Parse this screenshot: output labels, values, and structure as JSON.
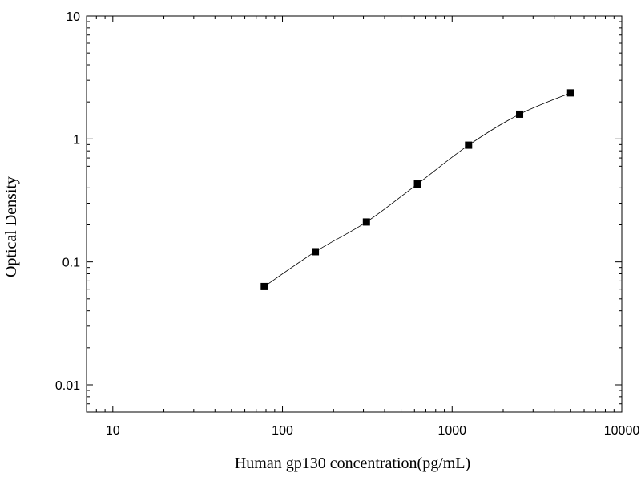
{
  "chart_data": {
    "type": "scatter",
    "title": "",
    "xlabel": "Human gp130 concentration(pg/mL)",
    "ylabel": "Optical Density",
    "x_scale": "log",
    "y_scale": "log",
    "xlim": [
      7,
      10000
    ],
    "ylim": [
      0.006,
      10
    ],
    "x_ticks": [
      "10",
      "100",
      "1000",
      "10000"
    ],
    "y_ticks": [
      "10",
      "1",
      "0.1",
      "0.01"
    ],
    "grid": false,
    "legend": "none",
    "series": [
      {
        "x": [
          78.125,
          156.25,
          312.5,
          625,
          1250,
          2500,
          5000
        ],
        "y": [
          0.063,
          0.121,
          0.211,
          0.43,
          0.89,
          1.59,
          2.37
        ]
      }
    ],
    "fit_curve": true,
    "colors": {
      "marker": "#000000",
      "curve": "#000000",
      "axis": "#000000"
    }
  }
}
